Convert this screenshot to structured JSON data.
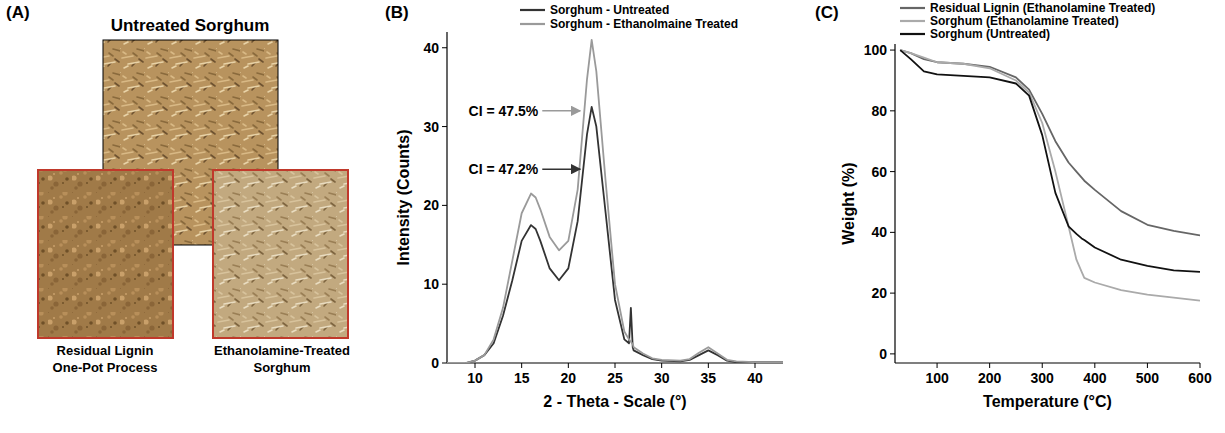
{
  "panel_a": {
    "label": "(A)",
    "title": "Untreated Sorghum",
    "captions": [
      [
        "Residual Lignin",
        "One-Pot Process"
      ],
      [
        "Ethanolamine-Treated",
        "Sorghum"
      ]
    ]
  },
  "chart_data": [
    {
      "type": "line",
      "title": "(B)",
      "x_label": "2 - Theta - Scale (°)",
      "y_label": "Intensity (Counts)",
      "xlim": [
        7,
        43
      ],
      "xticks": [
        10,
        15,
        20,
        25,
        30,
        35,
        40
      ],
      "ylim": [
        0,
        42
      ],
      "yticks": [
        0,
        10,
        20,
        30,
        40
      ],
      "grid": false,
      "legend": "top",
      "x": [
        7,
        9,
        10,
        11,
        12,
        13,
        14,
        15,
        16,
        16.5,
        17,
        18,
        19,
        20,
        21,
        22,
        22.5,
        23,
        24,
        25,
        26,
        26.5,
        26.7,
        26.9,
        27,
        28,
        29,
        30,
        32,
        33,
        34,
        35,
        36,
        37,
        38,
        40,
        43
      ],
      "series": [
        {
          "name": "Sorghum - Untreated",
          "color": "#333333",
          "values": [
            0,
            0,
            0.3,
            1,
            2.5,
            6,
            10.5,
            15.5,
            17.5,
            17,
            15.5,
            12,
            10.5,
            12,
            18,
            29,
            32.5,
            30,
            19,
            8,
            3,
            2.5,
            7,
            2,
            1.6,
            1,
            0.5,
            0.3,
            0.2,
            0.4,
            1,
            1.6,
            1,
            0.3,
            0.1,
            0.1,
            0.1
          ]
        },
        {
          "name": "Sorghum - Ethanolmaine Treated",
          "color": "#9a9a9a",
          "values": [
            0,
            0,
            0.3,
            1,
            3,
            7,
            13,
            19,
            21.5,
            21,
            19.5,
            16,
            14.3,
            15.5,
            22,
            36,
            41,
            37,
            23,
            10,
            4,
            3,
            2.7,
            2.4,
            2,
            1.2,
            0.6,
            0.4,
            0.3,
            0.5,
            1.3,
            2,
            1.2,
            0.4,
            0.2,
            0.1,
            0.1
          ]
        }
      ],
      "annotations": [
        {
          "text": "CI = 47.5%",
          "x": 21.6,
          "y": 32,
          "color": "#9a9a9a"
        },
        {
          "text": "CI = 47.2%",
          "x": 21.6,
          "y": 24.6,
          "color": "#333333"
        }
      ]
    },
    {
      "type": "line",
      "title": "(C)",
      "x_label": "Temperature (°C)",
      "y_label": "Weight (%)",
      "xlim": [
        20,
        600
      ],
      "xticks": [
        100,
        200,
        300,
        400,
        500,
        600
      ],
      "ylim": [
        -3,
        102
      ],
      "yticks": [
        0,
        20,
        40,
        60,
        80,
        100
      ],
      "grid": false,
      "legend": "top",
      "x": [
        30,
        50,
        75,
        100,
        150,
        200,
        250,
        275,
        300,
        325,
        350,
        365,
        375,
        380,
        400,
        450,
        500,
        550,
        600
      ],
      "series": [
        {
          "name": "Residual Lignin (Ethanolamine Treated)",
          "color": "#666666",
          "values": [
            100,
            99,
            97,
            96,
            95.5,
            94.5,
            91,
            87,
            79,
            70,
            63,
            60,
            58,
            57,
            54,
            47,
            42.5,
            40.5,
            39
          ]
        },
        {
          "name": "Sorghum (Ethanolamine Treated)",
          "color": "#aaaaaa",
          "values": [
            100,
            99,
            97.5,
            96,
            95.5,
            94,
            90,
            86,
            76,
            60,
            42,
            31,
            27,
            25,
            23.5,
            21,
            19.5,
            18.5,
            17.5
          ]
        },
        {
          "name": "Sorghum (Untreated)",
          "color": "#111111",
          "values": [
            100,
            97,
            93,
            92,
            91.5,
            91,
            89,
            85,
            72,
            53,
            42,
            39.5,
            38,
            37.5,
            35,
            31,
            29,
            27.5,
            27
          ]
        }
      ]
    }
  ]
}
